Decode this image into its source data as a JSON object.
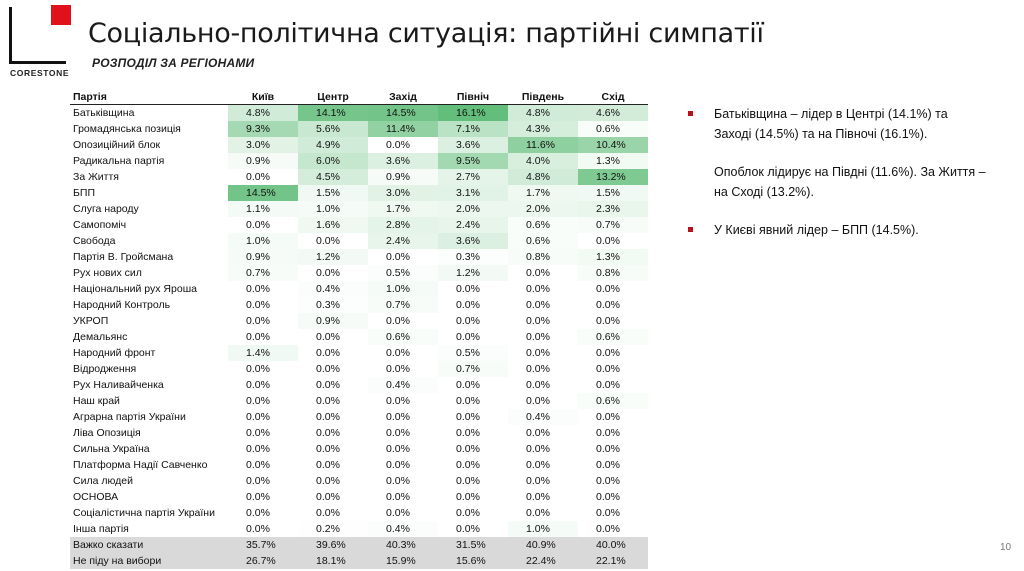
{
  "brand": {
    "name": "CORESTONE"
  },
  "title": "Соціально-політична ситуація: партійні симпатії",
  "subtitle": "РОЗПОДІЛ ЗА РЕГІОНАМИ",
  "table": {
    "headers": [
      "Партія",
      "Київ",
      "Центр",
      "Захід",
      "Північ",
      "Південь",
      "Схід"
    ],
    "rows": [
      {
        "name": "Батьківщина",
        "values": [
          "4.8%",
          "14.1%",
          "14.5%",
          "16.1%",
          "4.8%",
          "4.6%"
        ]
      },
      {
        "name": "Громадянська позиція",
        "values": [
          "9.3%",
          "5.6%",
          "11.4%",
          "7.1%",
          "4.3%",
          "0.6%"
        ]
      },
      {
        "name": "Опозиційний блок",
        "values": [
          "3.0%",
          "4.9%",
          "0.0%",
          "3.6%",
          "11.6%",
          "10.4%"
        ]
      },
      {
        "name": "Радикальна партія",
        "values": [
          "0.9%",
          "6.0%",
          "3.6%",
          "9.5%",
          "4.0%",
          "1.3%"
        ]
      },
      {
        "name": "За Життя",
        "values": [
          "0.0%",
          "4.5%",
          "0.9%",
          "2.7%",
          "4.8%",
          "13.2%"
        ]
      },
      {
        "name": "БПП",
        "values": [
          "14.5%",
          "1.5%",
          "3.0%",
          "3.1%",
          "1.7%",
          "1.5%"
        ]
      },
      {
        "name": "Слуга народу",
        "values": [
          "1.1%",
          "1.0%",
          "1.7%",
          "2.0%",
          "2.0%",
          "2.3%"
        ]
      },
      {
        "name": "Самопоміч",
        "values": [
          "0.0%",
          "1.6%",
          "2.8%",
          "2.4%",
          "0.6%",
          "0.7%"
        ]
      },
      {
        "name": "Свобода",
        "values": [
          "1.0%",
          "0.0%",
          "2.4%",
          "3.6%",
          "0.6%",
          "0.0%"
        ]
      },
      {
        "name": "Партія В. Гройсмана",
        "values": [
          "0.9%",
          "1.2%",
          "0.0%",
          "0.3%",
          "0.8%",
          "1.3%"
        ]
      },
      {
        "name": "Рух нових сил",
        "values": [
          "0.7%",
          "0.0%",
          "0.5%",
          "1.2%",
          "0.0%",
          "0.8%"
        ]
      },
      {
        "name": "Національний рух Яроша",
        "values": [
          "0.0%",
          "0.4%",
          "1.0%",
          "0.0%",
          "0.0%",
          "0.0%"
        ]
      },
      {
        "name": "Народний Контроль",
        "values": [
          "0.0%",
          "0.3%",
          "0.7%",
          "0.0%",
          "0.0%",
          "0.0%"
        ]
      },
      {
        "name": "УКРОП",
        "values": [
          "0.0%",
          "0.9%",
          "0.0%",
          "0.0%",
          "0.0%",
          "0.0%"
        ]
      },
      {
        "name": "Демальянс",
        "values": [
          "0.0%",
          "0.0%",
          "0.6%",
          "0.0%",
          "0.0%",
          "0.6%"
        ]
      },
      {
        "name": "Народний фронт",
        "values": [
          "1.4%",
          "0.0%",
          "0.0%",
          "0.5%",
          "0.0%",
          "0.0%"
        ]
      },
      {
        "name": "Відродження",
        "values": [
          "0.0%",
          "0.0%",
          "0.0%",
          "0.7%",
          "0.0%",
          "0.0%"
        ]
      },
      {
        "name": "Рух Наливайченка",
        "values": [
          "0.0%",
          "0.0%",
          "0.4%",
          "0.0%",
          "0.0%",
          "0.0%"
        ]
      },
      {
        "name": "Наш край",
        "values": [
          "0.0%",
          "0.0%",
          "0.0%",
          "0.0%",
          "0.0%",
          "0.6%"
        ]
      },
      {
        "name": "Аграрна партія України",
        "values": [
          "0.0%",
          "0.0%",
          "0.0%",
          "0.0%",
          "0.4%",
          "0.0%"
        ]
      },
      {
        "name": "Ліва Опозиція",
        "values": [
          "0.0%",
          "0.0%",
          "0.0%",
          "0.0%",
          "0.0%",
          "0.0%"
        ]
      },
      {
        "name": "Сильна Україна",
        "values": [
          "0.0%",
          "0.0%",
          "0.0%",
          "0.0%",
          "0.0%",
          "0.0%"
        ]
      },
      {
        "name": "Платформа Надії Савченко",
        "values": [
          "0.0%",
          "0.0%",
          "0.0%",
          "0.0%",
          "0.0%",
          "0.0%"
        ]
      },
      {
        "name": "Сила людей",
        "values": [
          "0.0%",
          "0.0%",
          "0.0%",
          "0.0%",
          "0.0%",
          "0.0%"
        ]
      },
      {
        "name": "ОСНОВА",
        "values": [
          "0.0%",
          "0.0%",
          "0.0%",
          "0.0%",
          "0.0%",
          "0.0%"
        ]
      },
      {
        "name": "Соціалістична партія України",
        "values": [
          "0.0%",
          "0.0%",
          "0.0%",
          "0.0%",
          "0.0%",
          "0.0%"
        ]
      },
      {
        "name": "Інша партія",
        "values": [
          "0.0%",
          "0.2%",
          "0.4%",
          "0.0%",
          "1.0%",
          "0.0%"
        ]
      }
    ],
    "summary_rows": [
      {
        "name": "Важко сказати",
        "values": [
          "35.7%",
          "39.6%",
          "40.3%",
          "31.5%",
          "40.9%",
          "40.0%"
        ]
      },
      {
        "name": "Не піду на вибори",
        "values": [
          "26.7%",
          "18.1%",
          "15.9%",
          "15.6%",
          "22.4%",
          "22.1%"
        ]
      }
    ]
  },
  "bullets": [
    {
      "text": "Батьківщина – лідер в Центрі (14.1%) та Заході (14.5%) та на Півночі (16.1%).",
      "cont": "Опоблок лідирує на Півдні (11.6%). За Життя – на Сході (13.2%)."
    },
    {
      "text": "У Києві явний лідер – БПП (14.5%)."
    }
  ],
  "page_number": "10",
  "colors": {
    "heat_max": "#63be7b",
    "heat_min": "#ffffff",
    "bullet_marker": "#b5121b",
    "logo_red": "#e0111a",
    "summary_bg": "#d9d9d9"
  }
}
